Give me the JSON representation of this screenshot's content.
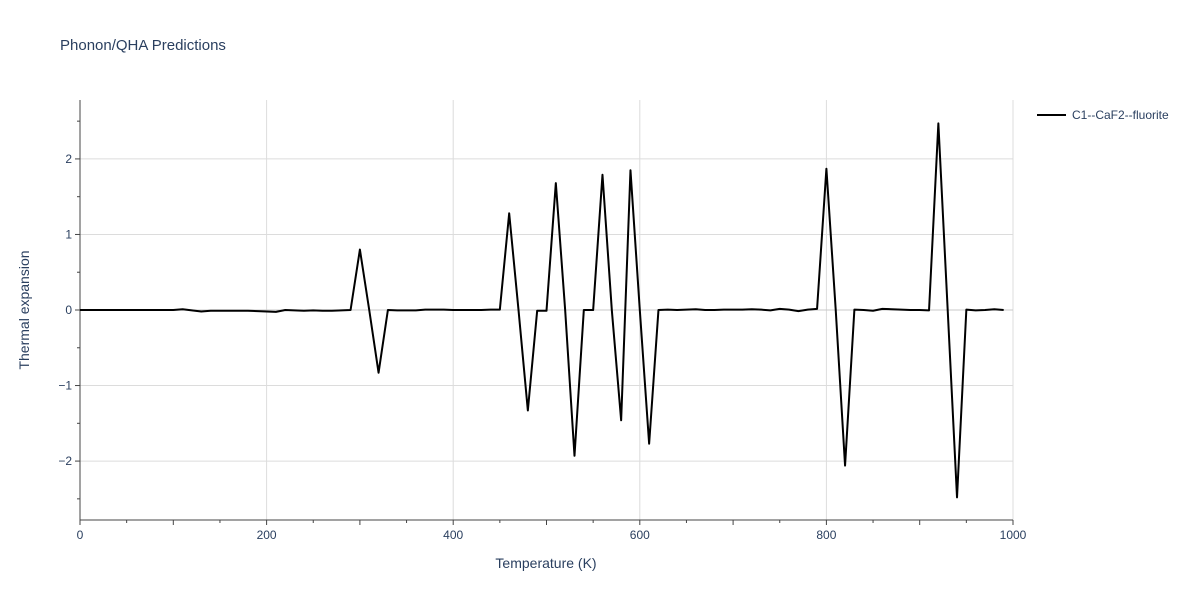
{
  "chart_data": {
    "type": "line",
    "title": "Phonon/QHA Predictions",
    "xlabel": "Temperature (K)",
    "ylabel": "Thermal expansion",
    "xlim": [
      0,
      1000
    ],
    "ylim": [
      -2.78,
      2.78
    ],
    "x_ticks": [
      0,
      200,
      400,
      600,
      800,
      1000
    ],
    "y_ticks": [
      2,
      1,
      0,
      -1,
      -2
    ],
    "x_tick_labels": [
      "0",
      "200",
      "400",
      "600",
      "800",
      "1000"
    ],
    "y_tick_labels": [
      "2",
      "1",
      "0",
      "−1",
      "−2"
    ],
    "grid": true,
    "legend_position": "top-right",
    "series": [
      {
        "name": "C1--CaF2--fluorite",
        "color": "#000000",
        "x": [
          0,
          10,
          20,
          30,
          40,
          50,
          60,
          70,
          80,
          90,
          100,
          110,
          120,
          130,
          140,
          150,
          160,
          170,
          180,
          190,
          200,
          210,
          220,
          230,
          240,
          250,
          260,
          270,
          280,
          290,
          300,
          310,
          320,
          330,
          340,
          350,
          360,
          370,
          380,
          390,
          400,
          410,
          420,
          430,
          440,
          450,
          460,
          470,
          480,
          490,
          500,
          510,
          520,
          530,
          540,
          550,
          560,
          570,
          580,
          590,
          600,
          610,
          620,
          630,
          640,
          650,
          660,
          670,
          680,
          690,
          700,
          710,
          720,
          730,
          740,
          750,
          760,
          770,
          780,
          790,
          800,
          810,
          820,
          830,
          840,
          850,
          860,
          870,
          880,
          890,
          900,
          910,
          920,
          930,
          940,
          950,
          960,
          970,
          980,
          990
        ],
        "y": [
          0,
          0,
          0,
          0,
          0,
          0,
          0,
          0,
          0,
          0,
          0,
          0.01,
          -0.005,
          -0.02,
          -0.01,
          -0.01,
          -0.01,
          -0.01,
          -0.01,
          -0.015,
          -0.02,
          -0.025,
          0,
          -0.005,
          -0.01,
          -0.005,
          -0.01,
          -0.01,
          -0.005,
          0,
          0.8,
          0,
          -0.83,
          0,
          -0.005,
          -0.005,
          -0.005,
          0.005,
          0.005,
          0.005,
          0,
          0,
          0,
          0,
          0.005,
          0.005,
          1.28,
          0,
          -1.33,
          -0.01,
          -0.01,
          1.68,
          0,
          -1.93,
          0,
          0,
          1.79,
          0,
          -1.46,
          1.85,
          0,
          -1.77,
          0,
          0.005,
          0,
          0.005,
          0.01,
          0,
          0,
          0.005,
          0.005,
          0.005,
          0.01,
          0.005,
          -0.005,
          0.015,
          0.005,
          -0.015,
          0.005,
          0.015,
          1.87,
          0,
          -2.06,
          0.005,
          0,
          -0.01,
          0.015,
          0.01,
          0.005,
          0,
          0,
          -0.005,
          2.47,
          0,
          -2.48,
          0.005,
          -0.005,
          0,
          0.01,
          0
        ]
      }
    ]
  }
}
